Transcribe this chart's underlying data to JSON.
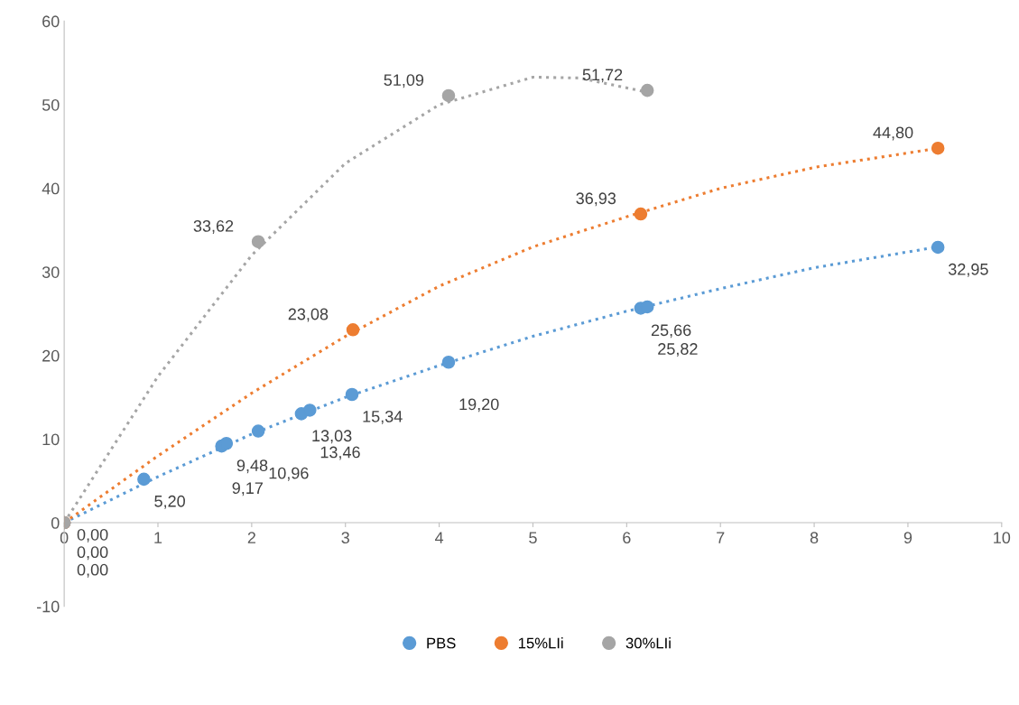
{
  "chart_data": {
    "type": "scatter",
    "xlim": [
      0,
      10
    ],
    "xticks": [
      0,
      1,
      2,
      3,
      4,
      5,
      6,
      7,
      8,
      9,
      10
    ],
    "ylim": [
      -10,
      60
    ],
    "yticks": [
      -10,
      0,
      10,
      20,
      30,
      40,
      50,
      60
    ],
    "grid": false,
    "legend": "bottom",
    "marker": "circle",
    "series": [
      {
        "name": "PBS",
        "color": "#5b9bd5",
        "x": [
          0,
          0.85,
          1.68,
          1.73,
          2.07,
          2.53,
          2.62,
          3.07,
          4.1,
          6.15,
          6.22,
          9.32
        ],
        "values": [
          0,
          5.2,
          9.17,
          9.48,
          10.96,
          13.03,
          13.46,
          15.34,
          19.2,
          25.66,
          25.82,
          32.95
        ],
        "value_labels": [
          "0,00",
          "5,20",
          "9,17",
          "9,48",
          "10,96",
          "13,03",
          "13,46",
          "15,34",
          "19,20",
          "25,66",
          "25,82",
          "32,95"
        ]
      },
      {
        "name": "15%LIi",
        "color": "#ed7d31",
        "x": [
          0,
          3.08,
          6.15,
          9.32
        ],
        "values": [
          0,
          23.08,
          36.93,
          44.8
        ],
        "value_labels": [
          "0,00",
          "23,08",
          "36,93",
          "44,80"
        ]
      },
      {
        "name": "30%LIi",
        "color": "#a5a5a5",
        "x": [
          0,
          2.07,
          4.1,
          6.22
        ],
        "values": [
          0,
          33.62,
          51.09,
          51.72
        ],
        "value_labels": [
          "0,00",
          "33,62",
          "51,09",
          "51,72"
        ]
      },
      {
        "type": "line",
        "marker": "none",
        "line_style": "dotted",
        "color": "#5b9bd5",
        "x": [
          0,
          1,
          2,
          3,
          4,
          5,
          6,
          7,
          8,
          9.32
        ],
        "values": [
          0,
          5.5,
          10.6,
          15,
          18.8,
          22.3,
          25.3,
          28,
          30.5,
          33
        ]
      },
      {
        "type": "line",
        "marker": "none",
        "line_style": "dotted",
        "color": "#ed7d31",
        "x": [
          0,
          1,
          2,
          3,
          4,
          5,
          6,
          7,
          8,
          9.32
        ],
        "values": [
          0,
          8,
          15.5,
          22.3,
          28.3,
          33,
          36.6,
          40,
          42.5,
          44.8
        ]
      },
      {
        "type": "line",
        "marker": "none",
        "line_style": "dotted",
        "color": "#a5a5a5",
        "x": [
          0,
          1,
          2,
          3,
          4,
          5,
          5.5,
          6.22
        ],
        "values": [
          0,
          17.5,
          32,
          43,
          50,
          53.3,
          53.2,
          51.5
        ]
      }
    ]
  }
}
